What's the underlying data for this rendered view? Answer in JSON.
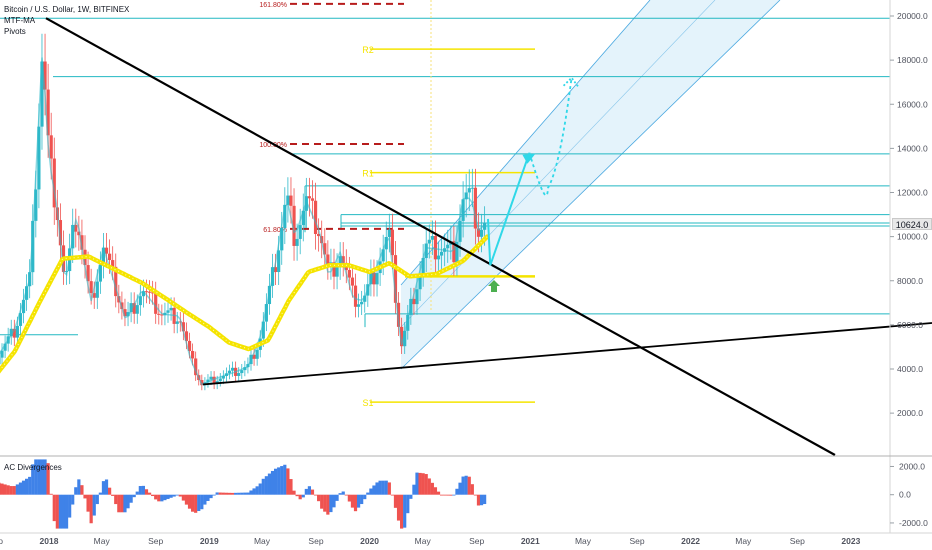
{
  "legend": {
    "title": "Bitcoin / U.S. Dollar, 1W, BITFINEX",
    "indicator1": "MTF-MA",
    "indicator2": "Pivots"
  },
  "ac_label": "AC Divergences",
  "current_price": "10624.0",
  "colors": {
    "candle_up": "#26a69a",
    "candle_main": "#2eb8c9",
    "candle_down": "#ef5350",
    "ma": "#f5e400",
    "pivot": "#f5e400",
    "fib": "#b71c1c",
    "hline": "#22b8c2",
    "channel_fill": "#cde9f7",
    "channel_line": "#4aa8e0",
    "trend": "#000000",
    "projection": "#2fd8e8",
    "arrow_up": "#4caf50",
    "ac_up": "#3f82e8",
    "ac_down": "#ef5350"
  },
  "chart_data": {
    "type": "line",
    "title": "Bitcoin / U.S. Dollar, 1W, BITFINEX",
    "y_axis": {
      "range": [
        400,
        21000
      ],
      "ticks": [
        "20000.0",
        "18000.0",
        "16000.0",
        "14000.0",
        "12000.0",
        "10000.0",
        "8000.0",
        "6000.0",
        "4000.0",
        "2000.0"
      ],
      "tick_values": [
        20000,
        18000,
        16000,
        14000,
        12000,
        10000,
        8000,
        6000,
        4000,
        2000
      ]
    },
    "x_axis": {
      "ticks": [
        "Sep",
        "2018",
        "May",
        "Sep",
        "2019",
        "May",
        "Sep",
        "2020",
        "May",
        "Sep",
        "2021",
        "May",
        "Sep",
        "2022",
        "May",
        "Sep",
        "2023"
      ],
      "tick_dates": [
        "2017-09-01",
        "2018-01-01",
        "2018-05-01",
        "2018-09-01",
        "2019-01-01",
        "2019-05-01",
        "2019-09-01",
        "2020-01-01",
        "2020-05-01",
        "2020-09-01",
        "2021-01-01",
        "2021-05-01",
        "2021-09-01",
        "2022-01-01",
        "2022-05-01",
        "2022-09-01",
        "2023-01-01"
      ]
    },
    "price_series": {
      "dates": [
        "2017-07-15",
        "2017-09-01",
        "2017-10-15",
        "2017-11-20",
        "2017-12-17",
        "2018-01-01",
        "2018-01-20",
        "2018-02-06",
        "2018-03-05",
        "2018-04-06",
        "2018-05-05",
        "2018-06-25",
        "2018-08-01",
        "2018-09-15",
        "2018-10-25",
        "2018-11-20",
        "2018-12-15",
        "2019-01-20",
        "2019-02-20",
        "2019-03-30",
        "2019-04-25",
        "2019-05-30",
        "2019-06-26",
        "2019-07-15",
        "2019-08-10",
        "2019-09-10",
        "2019-09-30",
        "2019-10-26",
        "2019-11-25",
        "2019-12-18",
        "2020-01-20",
        "2020-02-14",
        "2020-03-13",
        "2020-04-01",
        "2020-05-08",
        "2020-06-15",
        "2020-07-10",
        "2020-08-02",
        "2020-08-20",
        "2020-09-05",
        "2020-09-25"
      ],
      "close": [
        2100,
        4400,
        5800,
        8200,
        18500,
        13500,
        11200,
        7800,
        11000,
        7000,
        9500,
        6200,
        7600,
        6500,
        6400,
        4400,
        3300,
        3600,
        3800,
        4100,
        5300,
        8600,
        11800,
        10000,
        11600,
        10200,
        8200,
        9300,
        7200,
        7100,
        8800,
        10100,
        5000,
        6600,
        9500,
        9400,
        9300,
        11800,
        11700,
        10300,
        10624
      ]
    },
    "ma_series": {
      "name": "MTF-MA",
      "dates": [
        "2017-07-15",
        "2017-10-15",
        "2017-12-15",
        "2018-02-01",
        "2018-04-01",
        "2018-06-01",
        "2018-08-01",
        "2018-10-01",
        "2018-11-15",
        "2019-01-01",
        "2019-02-15",
        "2019-04-01",
        "2019-05-15",
        "2019-07-01",
        "2019-08-15",
        "2019-10-01",
        "2019-11-15",
        "2020-01-01",
        "2020-02-15",
        "2020-04-01",
        "2020-06-01",
        "2020-08-01",
        "2020-09-25"
      ],
      "values": [
        2500,
        4800,
        7200,
        9000,
        9100,
        8500,
        7900,
        7100,
        6500,
        5900,
        5200,
        4900,
        5300,
        7100,
        8400,
        8700,
        8700,
        8400,
        8800,
        8200,
        8300,
        8900,
        10000
      ]
    },
    "pivot_levels": [
      {
        "label": "R2",
        "value": 18500
      },
      {
        "label": "R1",
        "value": 12900
      },
      {
        "label": "",
        "value": 8200
      },
      {
        "label": "S1",
        "value": 2500
      }
    ],
    "fib_levels": [
      {
        "label": "161.80%",
        "value": 20550
      },
      {
        "label": "100.00%",
        "value": 14200
      },
      {
        "label": "61.80%",
        "value": 10350
      }
    ],
    "horizontal_levels": [
      19900,
      17250,
      13750,
      12300,
      11000,
      10620,
      10480,
      6500
    ],
    "projection_path": {
      "dates": [
        "2020-09-25",
        "2020-10-15",
        "2020-12-30",
        "2021-02-10",
        "2021-04-05",
        "2021-04-20"
      ],
      "values": [
        8700,
        8800,
        13800,
        12200,
        17200,
        16800
      ]
    },
    "ac_divergences": {
      "y_ticks": [
        "2000.0",
        "0.0",
        "-2000.0"
      ],
      "tick_values": [
        2000,
        0,
        -2000
      ],
      "range": [
        -2500,
        2600
      ]
    }
  }
}
